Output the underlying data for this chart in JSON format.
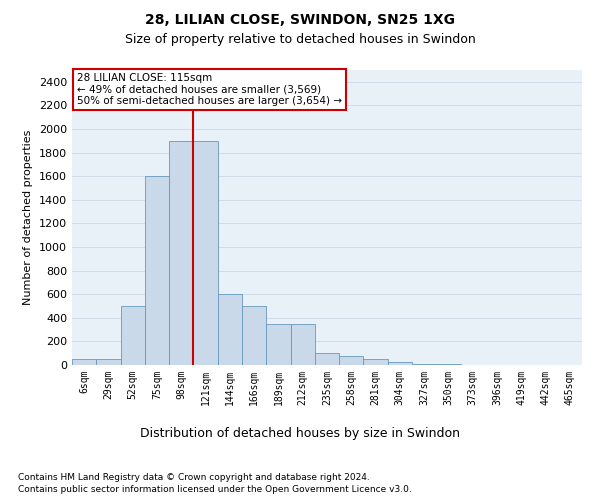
{
  "title": "28, LILIAN CLOSE, SWINDON, SN25 1XG",
  "subtitle": "Size of property relative to detached houses in Swindon",
  "xlabel": "Distribution of detached houses by size in Swindon",
  "ylabel": "Number of detached properties",
  "footnote1": "Contains HM Land Registry data © Crown copyright and database right 2024.",
  "footnote2": "Contains public sector information licensed under the Open Government Licence v3.0.",
  "annotation_title": "28 LILIAN CLOSE: 115sqm",
  "annotation_line1": "← 49% of detached houses are smaller (3,569)",
  "annotation_line2": "50% of semi-detached houses are larger (3,654) →",
  "bar_color": "#c9d9ea",
  "bar_edge_color": "#6699bb",
  "vline_color": "#cc0000",
  "categories": [
    "6sqm",
    "29sqm",
    "52sqm",
    "75sqm",
    "98sqm",
    "121sqm",
    "144sqm",
    "166sqm",
    "189sqm",
    "212sqm",
    "235sqm",
    "258sqm",
    "281sqm",
    "304sqm",
    "327sqm",
    "350sqm",
    "373sqm",
    "396sqm",
    "419sqm",
    "442sqm",
    "465sqm"
  ],
  "values": [
    50,
    50,
    500,
    1600,
    1900,
    1900,
    600,
    500,
    350,
    350,
    100,
    75,
    50,
    25,
    10,
    5,
    0,
    0,
    0,
    0,
    0
  ],
  "ylim": [
    0,
    2500
  ],
  "yticks": [
    0,
    200,
    400,
    600,
    800,
    1000,
    1200,
    1400,
    1600,
    1800,
    2000,
    2200,
    2400
  ],
  "grid_color": "#d0dce8",
  "background_color": "#e8f0f8",
  "title_fontsize": 10,
  "subtitle_fontsize": 9,
  "annotation_box_color": "white",
  "annotation_box_edgecolor": "#cc0000",
  "footnote_fontsize": 6.5,
  "ylabel_fontsize": 8,
  "xlabel_fontsize": 9,
  "tick_fontsize": 7
}
